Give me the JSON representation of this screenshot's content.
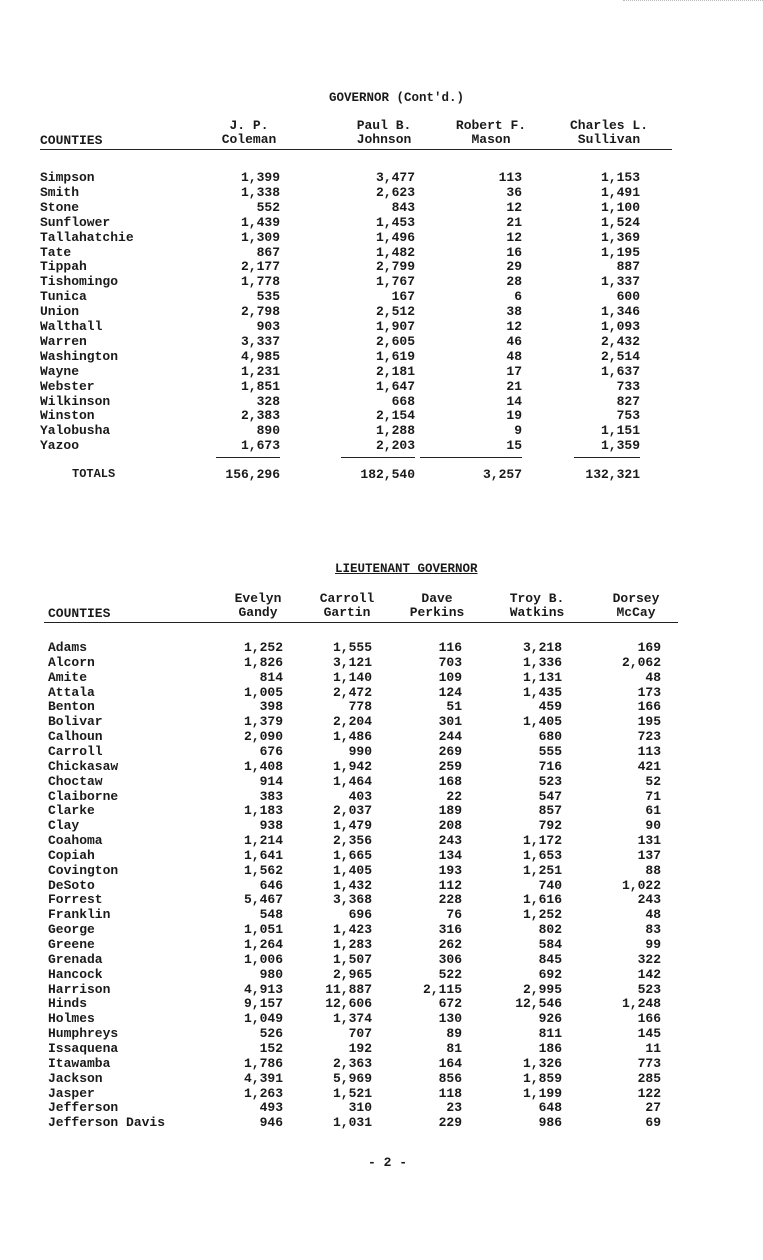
{
  "governor": {
    "title": "GOVERNOR (Cont'd.)",
    "columns": [
      "COUNTIES",
      "J. P.\nColeman",
      "Paul B.\nJohnson",
      "Robert F.\nMason",
      "Charles L.\nSullivan"
    ],
    "rows": [
      [
        "Simpson",
        "1,399",
        "3,477",
        "113",
        "1,153"
      ],
      [
        "Smith",
        "1,338",
        "2,623",
        "36",
        "1,491"
      ],
      [
        "Stone",
        "552",
        "843",
        "12",
        "1,100"
      ],
      [
        "Sunflower",
        "1,439",
        "1,453",
        "21",
        "1,524"
      ],
      [
        "Tallahatchie",
        "1,309",
        "1,496",
        "12",
        "1,369"
      ],
      [
        "Tate",
        "867",
        "1,482",
        "16",
        "1,195"
      ],
      [
        "Tippah",
        "2,177",
        "2,799",
        "29",
        "887"
      ],
      [
        "Tishomingo",
        "1,778",
        "1,767",
        "28",
        "1,337"
      ],
      [
        "Tunica",
        "535",
        "167",
        "6",
        "600"
      ],
      [
        "Union",
        "2,798",
        "2,512",
        "38",
        "1,346"
      ],
      [
        "Walthall",
        "903",
        "1,907",
        "12",
        "1,093"
      ],
      [
        "Warren",
        "3,337",
        "2,605",
        "46",
        "2,432"
      ],
      [
        "Washington",
        "4,985",
        "1,619",
        "48",
        "2,514"
      ],
      [
        "Wayne",
        "1,231",
        "2,181",
        "17",
        "1,637"
      ],
      [
        "Webster",
        "1,851",
        "1,647",
        "21",
        "733"
      ],
      [
        "Wilkinson",
        "328",
        "668",
        "14",
        "827"
      ],
      [
        "Winston",
        "2,383",
        "2,154",
        "19",
        "753"
      ],
      [
        "Yalobusha",
        "890",
        "1,288",
        "9",
        "1,151"
      ],
      [
        "Yazoo",
        "1,673",
        "2,203",
        "15",
        "1,359"
      ]
    ],
    "totals": [
      "TOTALS",
      "156,296",
      "182,540",
      "3,257",
      "132,321"
    ]
  },
  "lieutenant_governor": {
    "title": "LIEUTENANT GOVERNOR",
    "columns": [
      "COUNTIES",
      "Evelyn\nGandy",
      "Carroll\nGartin",
      "Dave\nPerkins",
      "Troy B.\nWatkins",
      "Dorsey\nMcCay"
    ],
    "rows": [
      [
        "Adams",
        "1,252",
        "1,555",
        "116",
        "3,218",
        "169"
      ],
      [
        "Alcorn",
        "1,826",
        "3,121",
        "703",
        "1,336",
        "2,062"
      ],
      [
        "Amite",
        "814",
        "1,140",
        "109",
        "1,131",
        "48"
      ],
      [
        "Attala",
        "1,005",
        "2,472",
        "124",
        "1,435",
        "173"
      ],
      [
        "Benton",
        "398",
        "778",
        "51",
        "459",
        "166"
      ],
      [
        "Bolivar",
        "1,379",
        "2,204",
        "301",
        "1,405",
        "195"
      ],
      [
        "Calhoun",
        "2,090",
        "1,486",
        "244",
        "680",
        "723"
      ],
      [
        "Carroll",
        "676",
        "990",
        "269",
        "555",
        "113"
      ],
      [
        "Chickasaw",
        "1,408",
        "1,942",
        "259",
        "716",
        "421"
      ],
      [
        "Choctaw",
        "914",
        "1,464",
        "168",
        "523",
        "52"
      ],
      [
        "Claiborne",
        "383",
        "403",
        "22",
        "547",
        "71"
      ],
      [
        "Clarke",
        "1,183",
        "2,037",
        "189",
        "857",
        "61"
      ],
      [
        "Clay",
        "938",
        "1,479",
        "208",
        "792",
        "90"
      ],
      [
        "Coahoma",
        "1,214",
        "2,356",
        "243",
        "1,172",
        "131"
      ],
      [
        "Copiah",
        "1,641",
        "1,665",
        "134",
        "1,653",
        "137"
      ],
      [
        "Covington",
        "1,562",
        "1,405",
        "193",
        "1,251",
        "88"
      ],
      [
        "DeSoto",
        "646",
        "1,432",
        "112",
        "740",
        "1,022"
      ],
      [
        "Forrest",
        "5,467",
        "3,368",
        "228",
        "1,616",
        "243"
      ],
      [
        "Franklin",
        "548",
        "696",
        "76",
        "1,252",
        "48"
      ],
      [
        "George",
        "1,051",
        "1,423",
        "316",
        "802",
        "83"
      ],
      [
        "Greene",
        "1,264",
        "1,283",
        "262",
        "584",
        "99"
      ],
      [
        "Grenada",
        "1,006",
        "1,507",
        "306",
        "845",
        "322"
      ],
      [
        "Hancock",
        "980",
        "2,965",
        "522",
        "692",
        "142"
      ],
      [
        "Harrison",
        "4,913",
        "11,887",
        "2,115",
        "2,995",
        "523"
      ],
      [
        "Hinds",
        "9,157",
        "12,606",
        "672",
        "12,546",
        "1,248"
      ],
      [
        "Holmes",
        "1,049",
        "1,374",
        "130",
        "926",
        "166"
      ],
      [
        "Humphreys",
        "526",
        "707",
        "89",
        "811",
        "145"
      ],
      [
        "Issaquena",
        "152",
        "192",
        "81",
        "186",
        "11"
      ],
      [
        "Itawamba",
        "1,786",
        "2,363",
        "164",
        "1,326",
        "773"
      ],
      [
        "Jackson",
        "4,391",
        "5,969",
        "856",
        "1,859",
        "285"
      ],
      [
        "Jasper",
        "1,263",
        "1,521",
        "118",
        "1,199",
        "122"
      ],
      [
        "Jefferson",
        "493",
        "310",
        "23",
        "648",
        "27"
      ],
      [
        "Jefferson Davis",
        "946",
        "1,031",
        "229",
        "986",
        "69"
      ]
    ]
  },
  "page_number": "- 2 -"
}
